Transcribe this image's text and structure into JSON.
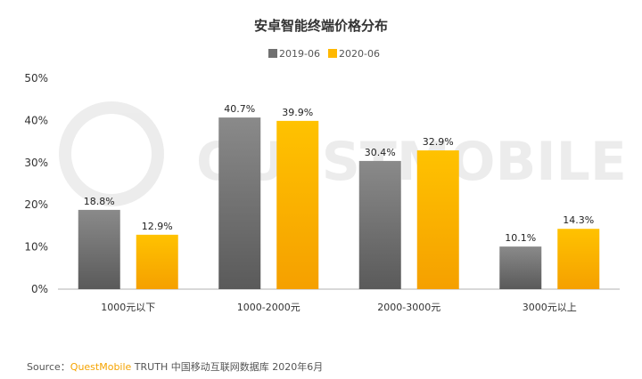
{
  "chart_data": {
    "type": "bar",
    "title": "安卓智能终端价格分布",
    "categories": [
      "1000元以下",
      "1000-2000元",
      "2000-3000元",
      "3000元以上"
    ],
    "series": [
      {
        "name": "2019-06",
        "values": [
          18.8,
          40.7,
          30.4,
          10.1
        ],
        "labels": [
          "18.8%",
          "40.7%",
          "30.4%",
          "10.1%"
        ],
        "color": "#707070"
      },
      {
        "name": "2020-06",
        "values": [
          12.9,
          39.9,
          32.9,
          14.3
        ],
        "labels": [
          "12.9%",
          "39.9%",
          "32.9%",
          "14.3%"
        ],
        "color": "#FFB800"
      }
    ],
    "yticks": [
      "0%",
      "10%",
      "20%",
      "30%",
      "40%",
      "50%"
    ],
    "ylim": [
      0,
      50
    ],
    "grid": false,
    "legend": "top-center"
  },
  "watermark": "QUESTMOBILE",
  "source": {
    "prefix": "Source：",
    "brand": "QuestMobile",
    "text": " TRUTH 中国移动互联网数据库 2020年6月"
  }
}
